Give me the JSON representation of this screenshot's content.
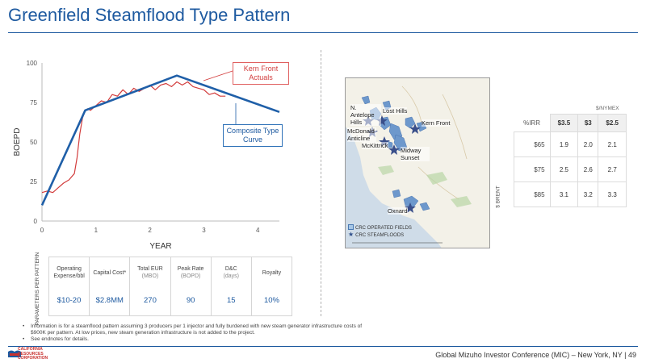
{
  "title": "Greenfield Steamflood Type Pattern",
  "chart": {
    "callout_actuals": "Kern Front Actuals",
    "callout_curve": "Composite Type Curve",
    "colors": {
      "actuals": "#d23c3c",
      "curve": "#1f5fa8"
    }
  },
  "chart_data": {
    "type": "line",
    "xlabel": "YEAR",
    "ylabel": "BOEPD",
    "xlim": [
      0,
      4.4
    ],
    "ylim": [
      0,
      100
    ],
    "x_ticks": [
      "0",
      "1",
      "2",
      "3",
      "4"
    ],
    "y_ticks": [
      "0",
      "25",
      "50",
      "75",
      "100"
    ],
    "grid": false,
    "series": [
      {
        "name": "Composite Type Curve",
        "x": [
          0,
          0.8,
          2.5,
          4.4
        ],
        "y": [
          10,
          70,
          92,
          69
        ]
      },
      {
        "name": "Kern Front Actuals",
        "x": [
          0,
          0.1,
          0.2,
          0.3,
          0.4,
          0.5,
          0.6,
          0.65,
          0.7,
          0.75,
          0.8,
          0.85,
          0.9,
          1.0,
          1.1,
          1.2,
          1.3,
          1.4,
          1.5,
          1.6,
          1.7,
          1.8,
          1.9,
          2.0,
          2.1,
          2.2,
          2.3,
          2.4,
          2.5,
          2.6,
          2.7,
          2.8,
          2.9,
          3.0,
          3.1,
          3.2,
          3.3,
          3.4
        ],
        "y": [
          18,
          19,
          18,
          21,
          24,
          26,
          30,
          40,
          55,
          65,
          70,
          71,
          70,
          73,
          76,
          75,
          80,
          79,
          83,
          80,
          84,
          82,
          84,
          86,
          83,
          86,
          87,
          85,
          88,
          86,
          88,
          85,
          84,
          83,
          80,
          81,
          79,
          79
        ]
      }
    ]
  },
  "parameters": {
    "side_label": "PARAMETERS PER PATTERN",
    "columns": [
      {
        "label": "Operating Expense/bbl",
        "sub": "",
        "value": "$10-20"
      },
      {
        "label": "Capital Cost*",
        "sub": "",
        "value": "$2.8MM"
      },
      {
        "label": "Total EUR",
        "sub": "(MBO)",
        "value": "270"
      },
      {
        "label": "Peak Rate",
        "sub": "(BOPD)",
        "value": "90"
      },
      {
        "label": "D&C",
        "sub": "(days)",
        "value": "15"
      },
      {
        "label": "Royalty",
        "sub": "",
        "value": "10%"
      }
    ]
  },
  "map": {
    "labels": {
      "n_antelope": "N. Antelope Hills",
      "lost_hills": "Lost Hills",
      "kern_front": "Kern Front",
      "mcdonald": "McDonald Anticline",
      "mckittrick": "McKittrick",
      "midway": "Midway Sunset",
      "oxnard": "Oxnard"
    },
    "legend_fields": "CRC OPERATED FIELDS",
    "legend_steam": "CRC STEAMFLOODS"
  },
  "sensitivity": {
    "units": "$/NYMEX",
    "corner": "%IRR",
    "row_axis_label": "$ BRENT",
    "columns": [
      "$3.5",
      "$3",
      "$2.5"
    ],
    "rows": [
      {
        "label": "$65",
        "values": [
          "1.9",
          "2.0",
          "2.1"
        ]
      },
      {
        "label": "$75",
        "values": [
          "2.5",
          "2.6",
          "2.7"
        ]
      },
      {
        "label": "$85",
        "values": [
          "3.1",
          "3.2",
          "3.3"
        ]
      }
    ]
  },
  "notes": [
    "Information is for a steamflood pattern assuming 3 producers per 1 injector and fully burdened with new steam generator infrastructure costs of $900K per pattern. At low prices, new steam generation infrastructure is not added to the project.",
    "See endnotes for details."
  ],
  "footer": {
    "logo_text": "CALIFORNIA RESOURCES CORPORATION",
    "text": "Global Mizuho Investor Conference (MIC) – New York, NY  | 49"
  }
}
